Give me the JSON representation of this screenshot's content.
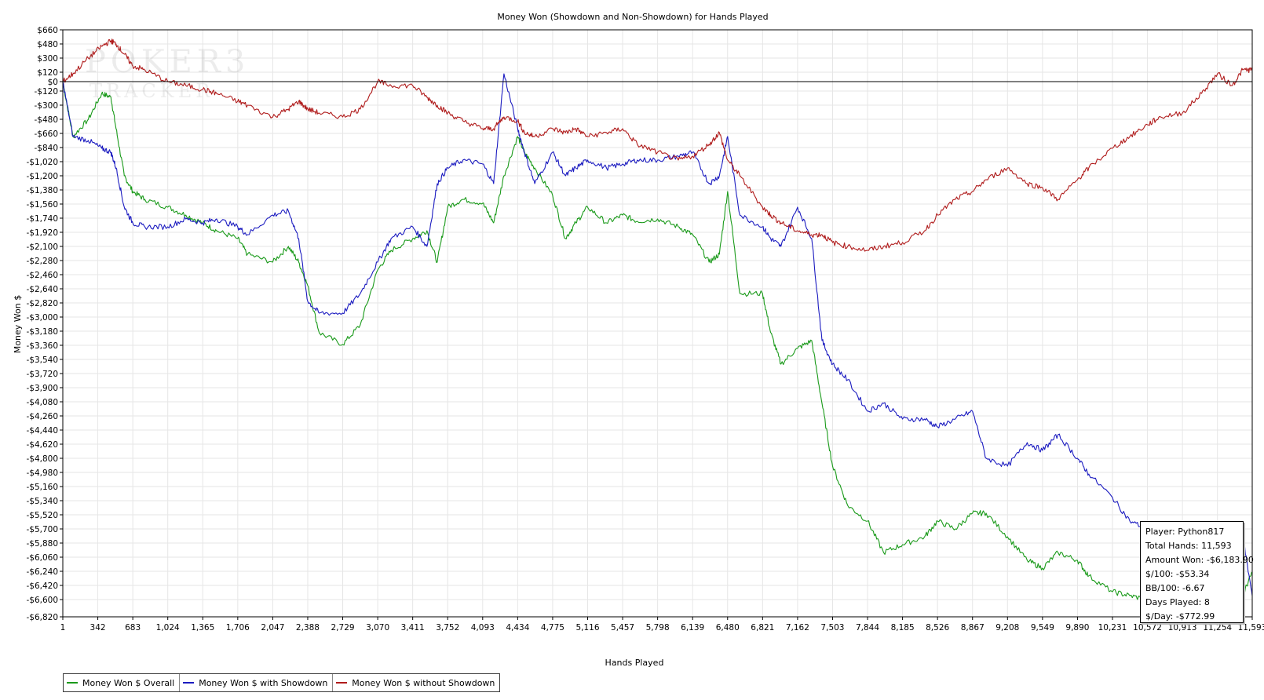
{
  "chart_data": {
    "type": "line",
    "title": "Money Won (Showdown and Non-Showdown) for Hands Played",
    "xlabel": "Hands Played",
    "ylabel": "Money Won $",
    "xlim": [
      1,
      11593
    ],
    "ylim": [
      -6820,
      660
    ],
    "y_ticks": [
      660,
      480,
      300,
      120,
      0,
      -120,
      -300,
      -480,
      -660,
      -840,
      -1020,
      -1200,
      -1380,
      -1560,
      -1740,
      -1920,
      -2100,
      -2280,
      -2460,
      -2640,
      -2820,
      -3000,
      -3180,
      -3360,
      -3540,
      -3720,
      -3900,
      -4080,
      -4260,
      -4440,
      -4620,
      -4800,
      -4980,
      -5160,
      -5340,
      -5520,
      -5700,
      -5880,
      -6060,
      -6240,
      -6420,
      -6600,
      -6820
    ],
    "y_tick_labels": [
      "$660",
      "$480",
      "$300",
      "$120",
      "$0",
      "-$120",
      "-$300",
      "-$480",
      "-$660",
      "-$840",
      "-$1,020",
      "-$1,200",
      "-$1,380",
      "-$1,560",
      "-$1,740",
      "-$1,920",
      "-$2,100",
      "-$2,280",
      "-$2,460",
      "-$2,640",
      "-$2,820",
      "-$3,000",
      "-$3,180",
      "-$3,360",
      "-$3,540",
      "-$3,720",
      "-$3,900",
      "-$4,080",
      "-$4,260",
      "-$4,440",
      "-$4,620",
      "-$4,800",
      "-$4,980",
      "-$5,160",
      "-$5,340",
      "-$5,520",
      "-$5,700",
      "-$5,880",
      "-$6,060",
      "-$6,240",
      "-$6,420",
      "-$6,600",
      "-$6,820"
    ],
    "x_ticks": [
      1,
      342,
      683,
      1024,
      1365,
      1706,
      2047,
      2388,
      2729,
      3070,
      3411,
      3752,
      4093,
      4434,
      4775,
      5116,
      5457,
      5798,
      6139,
      6480,
      6821,
      7162,
      7503,
      7844,
      8185,
      8526,
      8867,
      9208,
      9549,
      9890,
      10231,
      10572,
      10913,
      11254,
      11593
    ],
    "x_tick_labels": [
      "1",
      "342",
      "683",
      "1,024",
      "1,365",
      "1,706",
      "2,047",
      "2,388",
      "2,729",
      "3,070",
      "3,411",
      "3,752",
      "4,093",
      "4,434",
      "4,775",
      "5,116",
      "5,457",
      "5,798",
      "6,139",
      "6,480",
      "6,821",
      "7,162",
      "7,503",
      "7,844",
      "8,185",
      "8,526",
      "8,867",
      "9,208",
      "9,549",
      "9,890",
      "10,231",
      "10,572",
      "10,913",
      "11,254",
      "11,593"
    ],
    "grid": true,
    "legend": "bottom-left",
    "series": [
      {
        "name": "Money Won $ Overall",
        "color": "#1a9a1a",
        "x": [
          1,
          100,
          250,
          380,
          470,
          520,
          600,
          683,
          800,
          1024,
          1200,
          1365,
          1500,
          1706,
          1800,
          2047,
          2200,
          2300,
          2388,
          2500,
          2729,
          2900,
          3070,
          3200,
          3411,
          3550,
          3650,
          3752,
          3900,
          4093,
          4200,
          4300,
          4434,
          4500,
          4600,
          4775,
          4900,
          5000,
          5116,
          5300,
          5457,
          5600,
          5798,
          6000,
          6139,
          6300,
          6400,
          6480,
          6600,
          6821,
          6900,
          7000,
          7162,
          7300,
          7400,
          7503,
          7650,
          7844,
          8000,
          8185,
          8400,
          8526,
          8700,
          8867,
          9000,
          9208,
          9400,
          9549,
          9700,
          9890,
          10000,
          10231,
          10400,
          10572,
          10700,
          10913,
          11100,
          11254,
          11400,
          11500,
          11593
        ],
        "y": [
          0,
          -700,
          -480,
          -150,
          -200,
          -600,
          -1200,
          -1400,
          -1500,
          -1600,
          -1700,
          -1800,
          -1900,
          -2000,
          -2200,
          -2300,
          -2100,
          -2300,
          -2600,
          -3200,
          -3350,
          -3100,
          -2400,
          -2150,
          -2000,
          -1900,
          -2300,
          -1600,
          -1500,
          -1550,
          -1800,
          -1200,
          -700,
          -900,
          -1100,
          -1450,
          -2000,
          -1800,
          -1600,
          -1800,
          -1700,
          -1780,
          -1750,
          -1850,
          -1950,
          -2300,
          -2200,
          -1400,
          -2700,
          -2700,
          -3200,
          -3600,
          -3400,
          -3300,
          -4100,
          -4900,
          -5400,
          -5600,
          -6000,
          -5900,
          -5800,
          -5600,
          -5700,
          -5500,
          -5500,
          -5800,
          -6100,
          -6200,
          -6000,
          -6100,
          -6300,
          -6500,
          -6550,
          -6600,
          -6550,
          -6600,
          -6500,
          -6400,
          -6500,
          -6550,
          -6250
        ]
      },
      {
        "name": "Money Won $ with Showdown",
        "color": "#1c1cc0",
        "x": [
          1,
          100,
          250,
          380,
          470,
          520,
          600,
          683,
          800,
          1024,
          1200,
          1365,
          1500,
          1706,
          1800,
          2047,
          2200,
          2300,
          2388,
          2500,
          2729,
          2900,
          3070,
          3200,
          3411,
          3550,
          3650,
          3752,
          3900,
          4093,
          4200,
          4300,
          4434,
          4500,
          4600,
          4775,
          4900,
          5000,
          5116,
          5300,
          5457,
          5600,
          5798,
          6000,
          6139,
          6300,
          6400,
          6480,
          6600,
          6821,
          6900,
          7000,
          7162,
          7300,
          7400,
          7503,
          7650,
          7844,
          8000,
          8185,
          8400,
          8526,
          8700,
          8867,
          9000,
          9208,
          9400,
          9549,
          9700,
          9890,
          10000,
          10231,
          10400,
          10572,
          10700,
          10913,
          11100,
          11254,
          11400,
          11500,
          11593
        ],
        "y": [
          0,
          -700,
          -750,
          -850,
          -900,
          -1100,
          -1600,
          -1800,
          -1850,
          -1850,
          -1750,
          -1800,
          -1750,
          -1850,
          -1950,
          -1700,
          -1650,
          -2000,
          -2800,
          -2950,
          -2950,
          -2700,
          -2300,
          -2000,
          -1850,
          -2100,
          -1300,
          -1100,
          -1000,
          -1050,
          -1300,
          100,
          -600,
          -900,
          -1300,
          -900,
          -1200,
          -1100,
          -1000,
          -1100,
          -1050,
          -1000,
          -1000,
          -950,
          -900,
          -1300,
          -1200,
          -700,
          -1700,
          -1850,
          -2000,
          -2100,
          -1600,
          -2000,
          -3300,
          -3600,
          -3800,
          -4200,
          -4100,
          -4300,
          -4300,
          -4400,
          -4300,
          -4200,
          -4800,
          -4900,
          -4600,
          -4700,
          -4500,
          -4800,
          -5000,
          -5300,
          -5600,
          -5700,
          -5900,
          -5850,
          -5800,
          -5700,
          -5800,
          -5800,
          -6550
        ]
      },
      {
        "name": "Money Won $ without Showdown",
        "color": "#b01c1c",
        "x": [
          1,
          100,
          250,
          380,
          470,
          520,
          600,
          683,
          800,
          1024,
          1200,
          1365,
          1500,
          1706,
          1800,
          2047,
          2200,
          2300,
          2388,
          2500,
          2729,
          2900,
          3070,
          3200,
          3411,
          3550,
          3650,
          3752,
          3900,
          4093,
          4200,
          4300,
          4434,
          4500,
          4600,
          4775,
          4900,
          5000,
          5116,
          5300,
          5457,
          5600,
          5798,
          6000,
          6139,
          6300,
          6400,
          6480,
          6600,
          6821,
          6900,
          7000,
          7162,
          7300,
          7400,
          7503,
          7650,
          7844,
          8000,
          8185,
          8400,
          8526,
          8700,
          8867,
          9000,
          9208,
          9400,
          9549,
          9700,
          9890,
          10000,
          10231,
          10400,
          10572,
          10700,
          10913,
          11100,
          11254,
          11400,
          11500,
          11593
        ],
        "y": [
          0,
          100,
          300,
          450,
          520,
          480,
          350,
          200,
          150,
          0,
          -50,
          -100,
          -150,
          -250,
          -300,
          -450,
          -350,
          -250,
          -350,
          -400,
          -450,
          -350,
          0,
          -50,
          -50,
          -200,
          -300,
          -400,
          -500,
          -600,
          -600,
          -450,
          -500,
          -650,
          -700,
          -600,
          -650,
          -600,
          -700,
          -650,
          -600,
          -800,
          -900,
          -1000,
          -950,
          -800,
          -650,
          -1000,
          -1200,
          -1600,
          -1700,
          -1800,
          -1900,
          -1950,
          -1950,
          -2050,
          -2100,
          -2150,
          -2100,
          -2050,
          -1900,
          -1700,
          -1500,
          -1400,
          -1250,
          -1100,
          -1300,
          -1350,
          -1500,
          -1250,
          -1100,
          -850,
          -700,
          -550,
          -450,
          -400,
          -150,
          100,
          -50,
          150,
          150
        ]
      }
    ]
  },
  "info_box": {
    "player": "Player: Python817",
    "total_hands": "Total Hands: 11,593",
    "amount_won": "Amount Won: -$6,183.90",
    "per_100": "$/100: -$53.34",
    "bb_100": "BB/100: -6.67",
    "days_played": "Days Played: 8",
    "per_day": "$/Day: -$772.99"
  },
  "watermark": {
    "line1": "POKER3",
    "line2": "TRACKER"
  }
}
